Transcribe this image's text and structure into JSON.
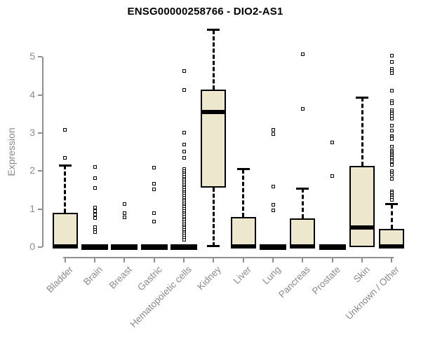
{
  "chart_data": {
    "type": "boxplot",
    "title": "ENSG00000258766 - DIO2-AS1",
    "xlabel": "",
    "ylabel": "Expression",
    "ylim": [
      0,
      5
    ],
    "yticks": [
      0,
      1,
      2,
      3,
      4,
      5
    ],
    "grid": false,
    "legend": "none",
    "colors": {
      "box_fill": "#EDE8CD",
      "box_border": "#000000",
      "median": "#000000",
      "whisker": "#000000",
      "outlier": "#000000",
      "axis": "#8f8f8f",
      "tick_text": "#8a8a8a",
      "title_text": "#000000"
    },
    "categories": [
      "Bladder",
      "Brain",
      "Breast",
      "Gastric",
      "Hematopoietic cells",
      "Kidney",
      "Liver",
      "Lung",
      "Pancreas",
      "Prostate",
      "Skin",
      "Unknown / Other"
    ],
    "boxes": [
      {
        "category": "Bladder",
        "q1": 0,
        "median": 0.02,
        "q3": 0.91,
        "whisker_low": 0,
        "whisker_high": 2.15,
        "outliers": [
          3.09,
          2.35
        ]
      },
      {
        "category": "Brain",
        "q1": 0,
        "median": 0,
        "q3": 0,
        "whisker_low": 0,
        "whisker_high": 0,
        "outliers": [
          2.11,
          1.82,
          1.55,
          1.04,
          0.95,
          0.85,
          0.76,
          0.52,
          0.45,
          0.39
        ]
      },
      {
        "category": "Breast",
        "q1": 0,
        "median": 0,
        "q3": 0,
        "whisker_low": 0,
        "whisker_high": 0,
        "outliers": [
          1.13,
          0.89,
          0.79
        ]
      },
      {
        "category": "Gastric",
        "q1": 0,
        "median": 0,
        "q3": 0,
        "whisker_low": 0,
        "whisker_high": 0,
        "outliers": [
          2.08,
          1.66,
          1.52,
          0.9,
          0.67
        ]
      },
      {
        "category": "Hematopoietic cells",
        "q1": 0,
        "median": 0,
        "q3": 0,
        "whisker_low": 0,
        "whisker_high": 0,
        "outliers": [
          4.62,
          4.13,
          3.01,
          2.69,
          2.51,
          2.34,
          2.05,
          2.0,
          1.95,
          1.9,
          1.85,
          1.8,
          1.75,
          1.7,
          1.65,
          1.6,
          1.55,
          1.5,
          1.45,
          1.4,
          1.35,
          1.3,
          1.25,
          1.2,
          1.15,
          1.1,
          1.05,
          1.0,
          0.95,
          0.9,
          0.85,
          0.8,
          0.75,
          0.7,
          0.65,
          0.6,
          0.55,
          0.5,
          0.45,
          0.4,
          0.35,
          0.3,
          0.25,
          0.2
        ]
      },
      {
        "category": "Kidney",
        "q1": 1.56,
        "median": 3.55,
        "q3": 4.14,
        "whisker_low": 0.02,
        "whisker_high": 5.71,
        "outliers": []
      },
      {
        "category": "Liver",
        "q1": 0,
        "median": 0.02,
        "q3": 0.8,
        "whisker_low": 0,
        "whisker_high": 2.05,
        "outliers": []
      },
      {
        "category": "Lung",
        "q1": 0,
        "median": 0,
        "q3": 0,
        "whisker_low": 0,
        "whisker_high": 0,
        "outliers": [
          3.09,
          2.97,
          1.59,
          1.12,
          0.96
        ]
      },
      {
        "category": "Pancreas",
        "q1": 0,
        "median": 0.02,
        "q3": 0.76,
        "whisker_low": 0,
        "whisker_high": 1.54,
        "outliers": [
          5.08,
          3.63
        ]
      },
      {
        "category": "Prostate",
        "q1": 0,
        "median": 0,
        "q3": 0,
        "whisker_low": 0,
        "whisker_high": 0,
        "outliers": [
          2.76,
          1.87
        ]
      },
      {
        "category": "Skin",
        "q1": 0,
        "median": 0.51,
        "q3": 2.13,
        "whisker_low": 0,
        "whisker_high": 3.93,
        "outliers": []
      },
      {
        "category": "Unknown / Other",
        "q1": 0,
        "median": 0.02,
        "q3": 0.47,
        "whisker_low": 0,
        "whisker_high": 1.13,
        "outliers": [
          5.04,
          4.86,
          4.69,
          4.63,
          4.57,
          4.11,
          3.83,
          3.78,
          3.59,
          3.55,
          3.5,
          3.46,
          3.37,
          3.2,
          3.06,
          2.91,
          2.88,
          2.85,
          2.65,
          2.54,
          2.5,
          2.46,
          2.42,
          2.38,
          2.34,
          2.3,
          2.26,
          2.17,
          1.99,
          1.95,
          1.9,
          1.8,
          1.47,
          1.43,
          1.38,
          1.34,
          1.3,
          1.25
        ]
      }
    ]
  }
}
